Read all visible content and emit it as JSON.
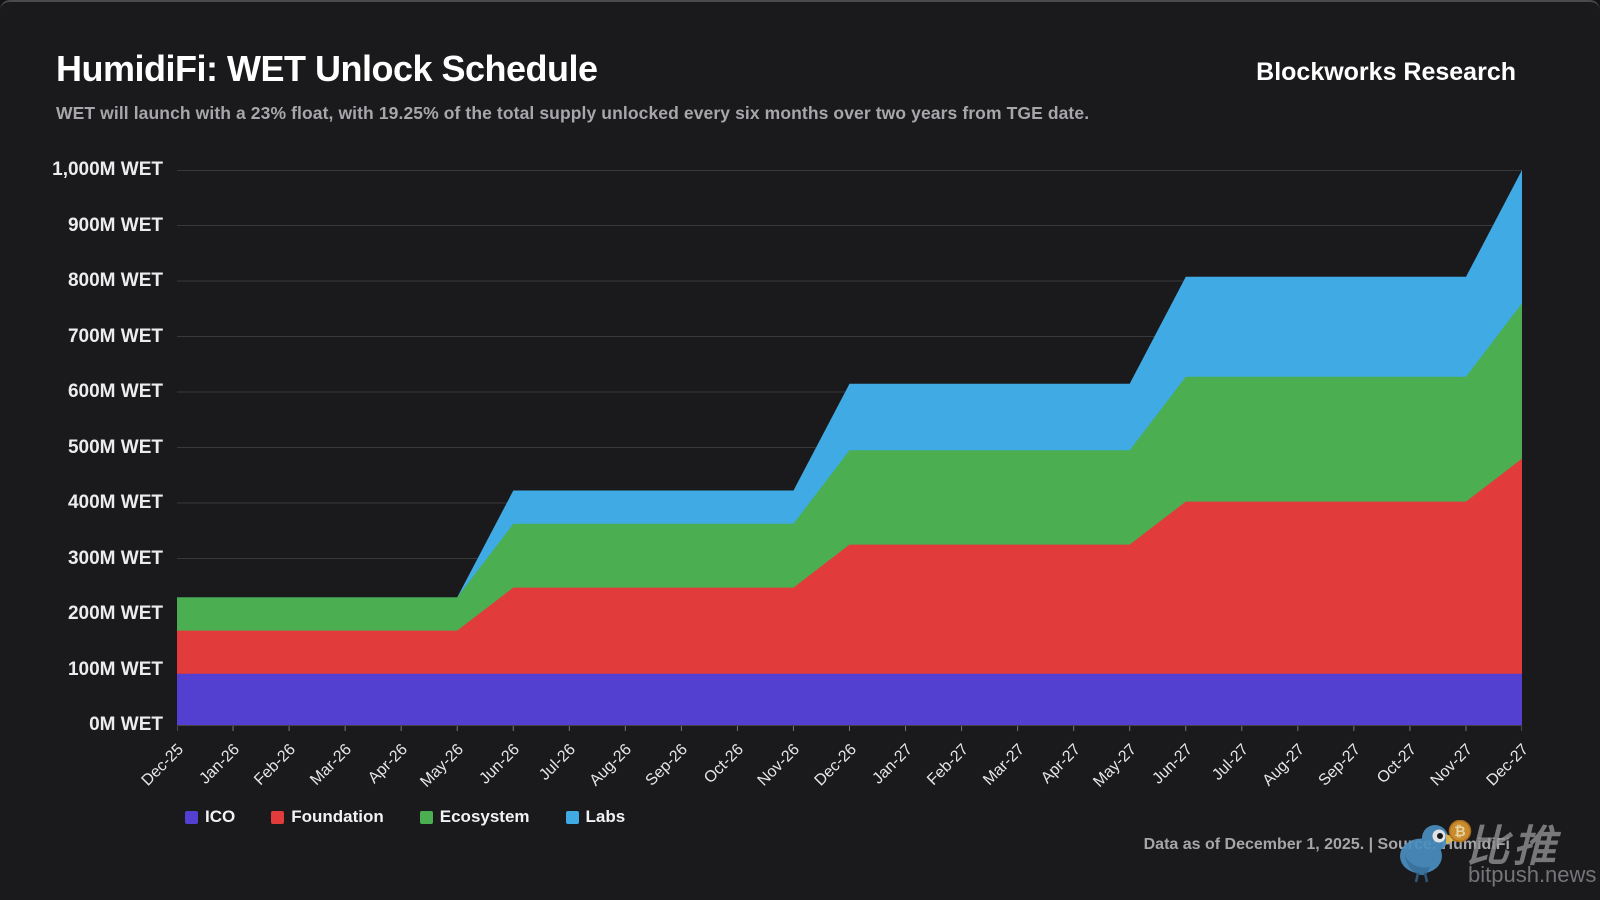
{
  "header": {
    "title": "HumidiFi: WET Unlock Schedule",
    "brand": "Blockworks Research",
    "subtitle": "WET will launch with a 23% float, with 19.25% of the total supply unlocked every six months over two years from TGE date."
  },
  "chart_data": {
    "type": "area",
    "stacked": true,
    "title": "HumidiFi: WET Unlock Schedule",
    "xlabel": "",
    "ylabel": "",
    "ylim": [
      0,
      1000
    ],
    "ytick_step": 100,
    "ytick_suffix": "M WET",
    "grid": true,
    "legend_position": "bottom-left",
    "x": [
      "Dec-25",
      "Jan-26",
      "Feb-26",
      "Mar-26",
      "Apr-26",
      "May-26",
      "Jun-26",
      "Jul-26",
      "Aug-26",
      "Sep-26",
      "Oct-26",
      "Nov-26",
      "Dec-26",
      "Jan-27",
      "Feb-27",
      "Mar-27",
      "Apr-27",
      "May-27",
      "Jun-27",
      "Jul-27",
      "Aug-27",
      "Sep-27",
      "Oct-27",
      "Nov-27",
      "Dec-27"
    ],
    "series": [
      {
        "name": "ICO",
        "color": "#5340D0",
        "values": [
          92.5,
          92.5,
          92.5,
          92.5,
          92.5,
          92.5,
          92.5,
          92.5,
          92.5,
          92.5,
          92.5,
          92.5,
          92.5,
          92.5,
          92.5,
          92.5,
          92.5,
          92.5,
          92.5,
          92.5,
          92.5,
          92.5,
          92.5,
          92.5,
          92.5
        ]
      },
      {
        "name": "Foundation",
        "color": "#E23B3B",
        "values": [
          77.5,
          77.5,
          77.5,
          77.5,
          77.5,
          77.5,
          155,
          155,
          155,
          155,
          155,
          155,
          232.5,
          232.5,
          232.5,
          232.5,
          232.5,
          232.5,
          310,
          310,
          310,
          310,
          310,
          310,
          387.5
        ]
      },
      {
        "name": "Ecosystem",
        "color": "#4BAE50",
        "values": [
          60,
          60,
          60,
          60,
          60,
          60,
          115,
          115,
          115,
          115,
          115,
          115,
          170,
          170,
          170,
          170,
          170,
          170,
          225,
          225,
          225,
          225,
          225,
          225,
          280
        ]
      },
      {
        "name": "Labs",
        "color": "#3FAAE3",
        "values": [
          0,
          0,
          0,
          0,
          0,
          0,
          60,
          60,
          60,
          60,
          60,
          60,
          120,
          120,
          120,
          120,
          120,
          120,
          180,
          180,
          180,
          180,
          180,
          180,
          240
        ]
      }
    ],
    "unlock_plateau_totals": [
      230,
      422.5,
      615,
      807.5,
      1000
    ]
  },
  "footer": {
    "note": "Data as of December 1, 2025. | Source: HumidiFi"
  },
  "watermark": {
    "cn": "比推",
    "domain": "bitpush.news",
    "bird_icon": "bird-with-bitcoin-icon"
  },
  "theme": {
    "background": "#1a1a1c",
    "gridline": "#39393c",
    "axis_line": "#454548",
    "tick": "#77777a",
    "text_bright": "#ffffff",
    "text_dim": "#a7a7ab"
  }
}
